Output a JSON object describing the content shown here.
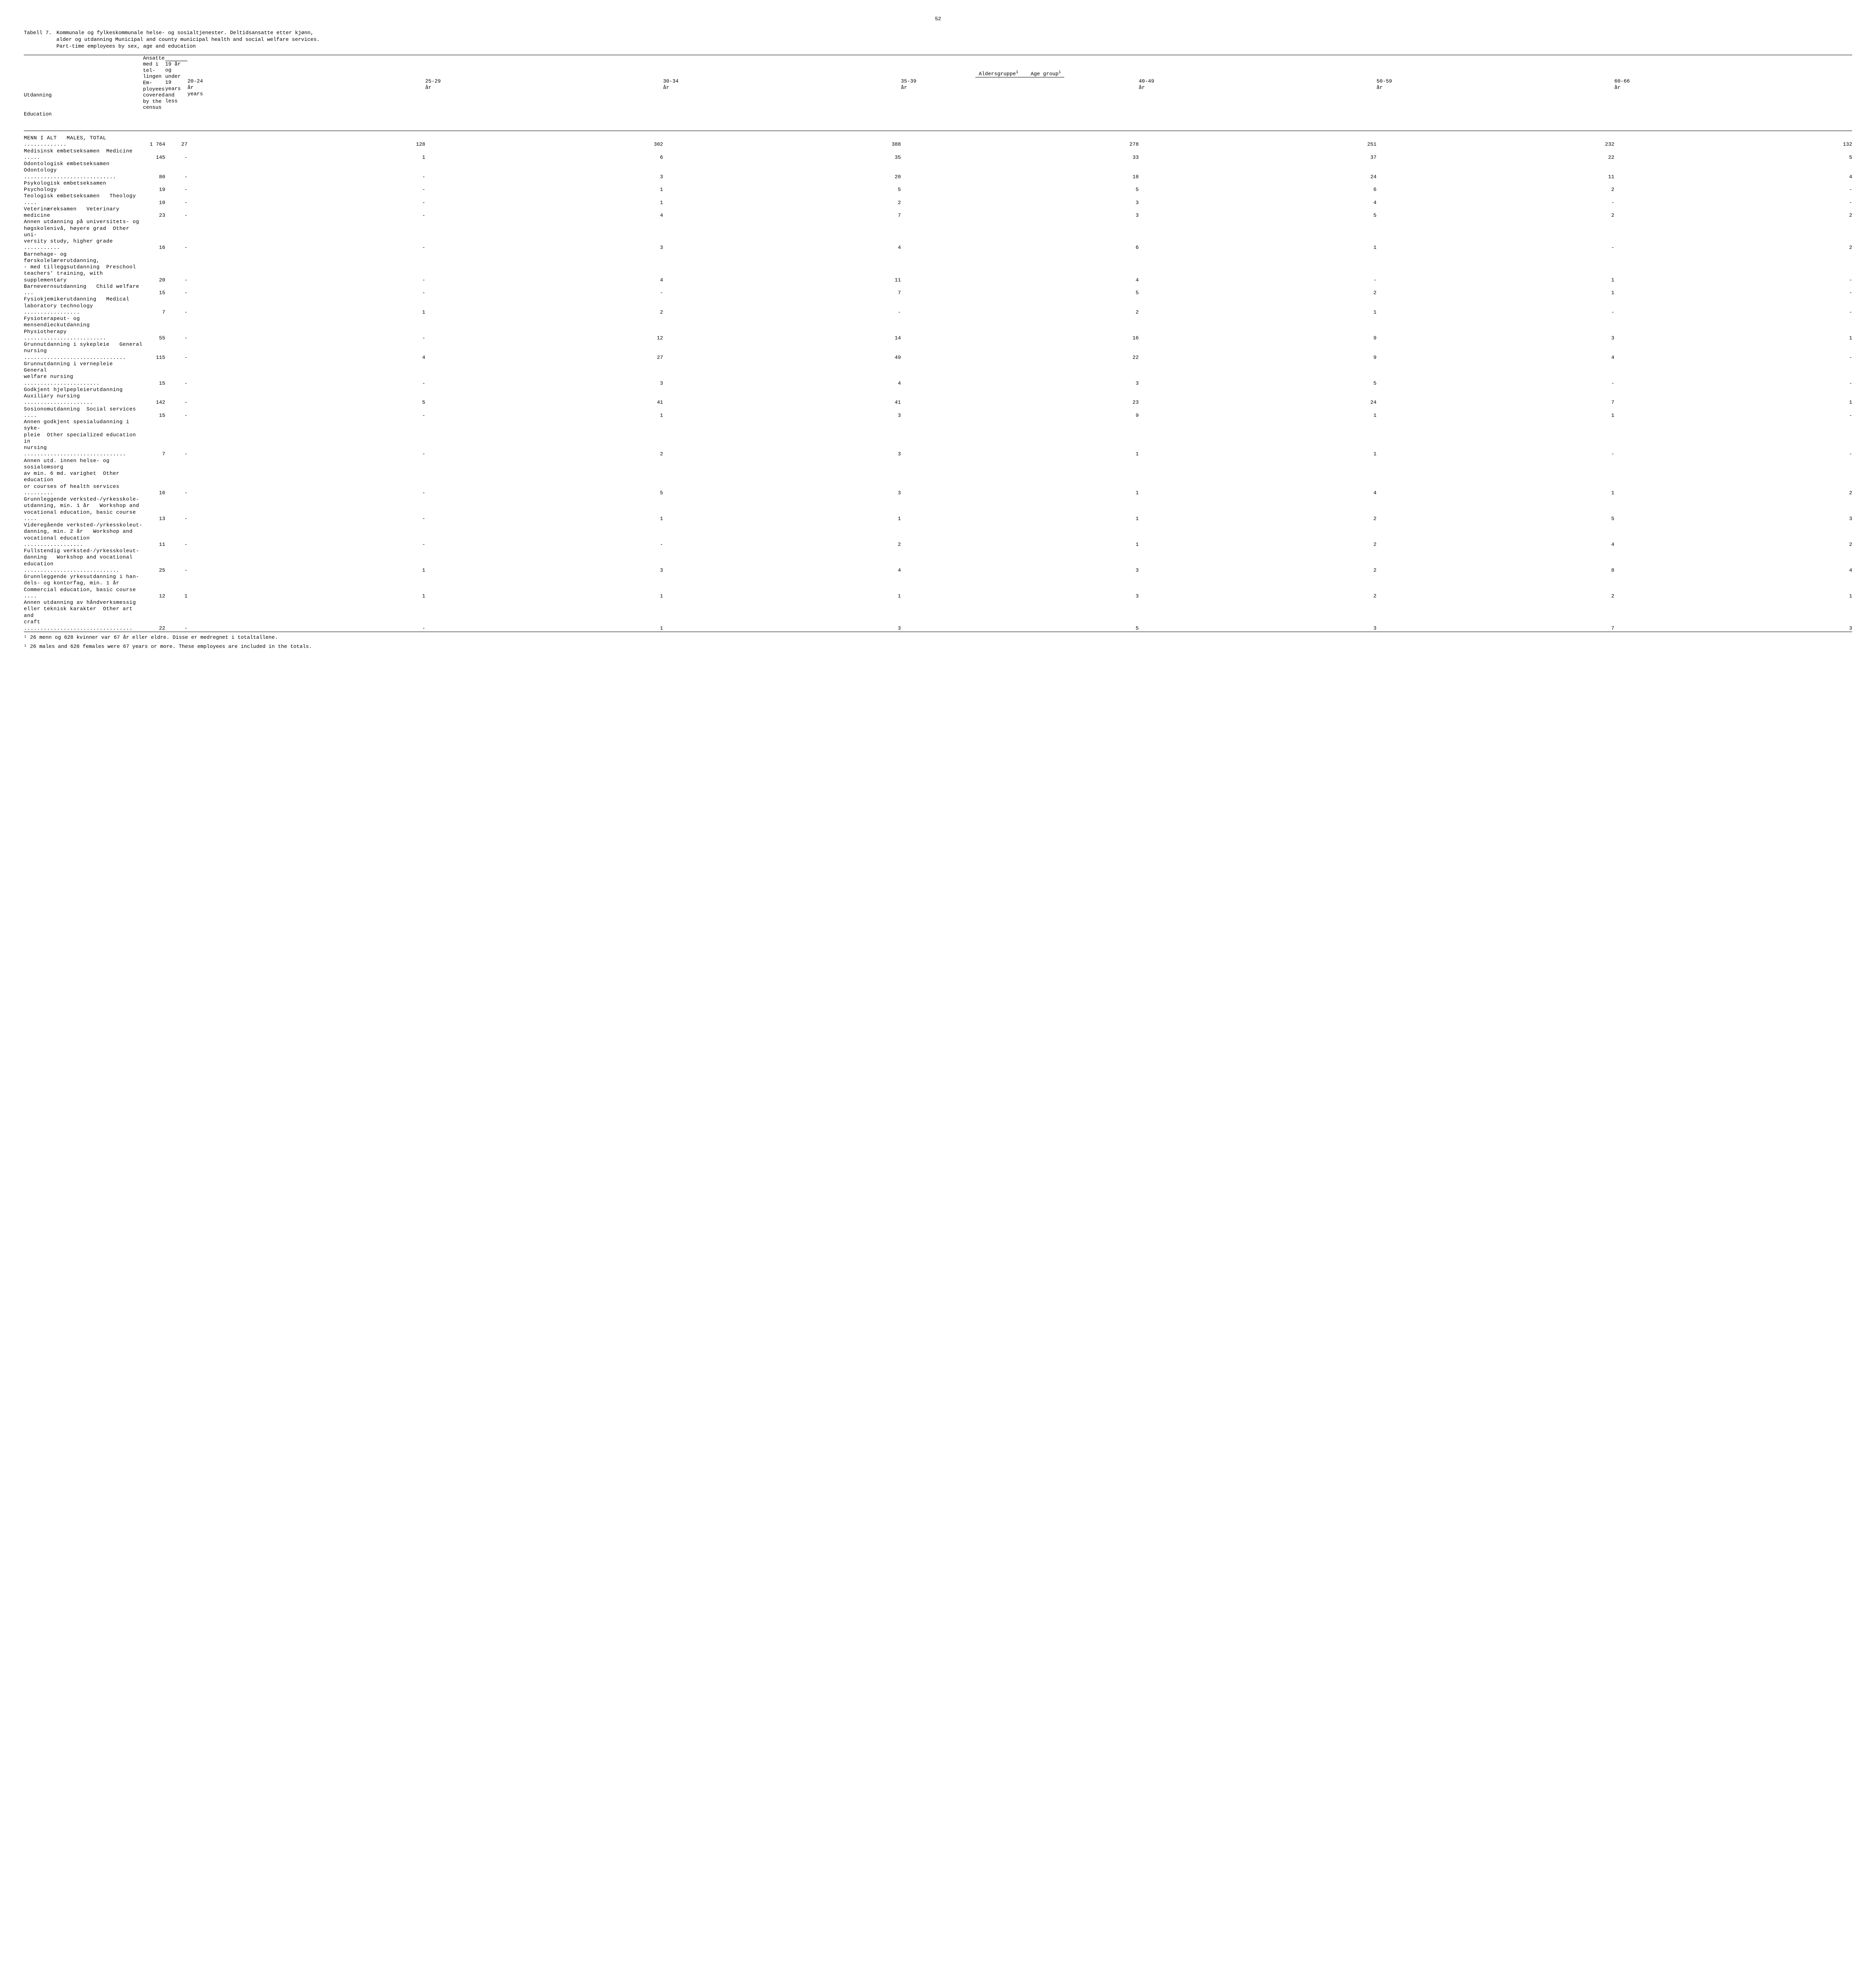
{
  "page_number": "52",
  "table_label": "Tabell 7.",
  "title_line1": "Kommunale og fylkeskommunale helse- og sosialtjenester.  Deltidsansatte etter kjønn,",
  "title_line2": "alder og utdanning   Municipal and county municipal health and social welfare services.",
  "title_line3": "Part-time employees by sex, age and education",
  "stub_head_no": "Utdanning",
  "stub_head_en": "Education",
  "col_total_no": "Ansatte med i tel-lingen",
  "col_total_en": "Em-ployees covered by the census",
  "span_no": "Aldersgruppe",
  "span_en": "Age group",
  "sup": "1",
  "age_cols": [
    {
      "no": "19 år og under",
      "en": "19 years and less"
    },
    {
      "no": "20-24 år",
      "en": "years"
    },
    {
      "no": "25-29 år",
      "en": ""
    },
    {
      "no": "30-34 år",
      "en": ""
    },
    {
      "no": "35-39 år",
      "en": ""
    },
    {
      "no": "40-49 år",
      "en": ""
    },
    {
      "no": "50-59 år",
      "en": ""
    },
    {
      "no": "60-66 år",
      "en": ""
    }
  ],
  "rows": [
    {
      "label": "MENN I ALT   MALES, TOTAL .............",
      "vals": [
        "1 764",
        "27",
        "128",
        "302",
        "388",
        "278",
        "251",
        "232",
        "132"
      ],
      "bold": true
    },
    {
      "label": "",
      "vals": [
        "",
        "",
        "",
        "",
        "",
        "",
        "",
        "",
        ""
      ]
    },
    {
      "label": "Medisinsk embetseksamen  Medicine .....",
      "vals": [
        "145",
        "-",
        "1",
        "6",
        "35",
        "33",
        "37",
        "22",
        "5"
      ]
    },
    {
      "label": "Odontologisk embetseksamen",
      "vals": [
        "",
        "",
        "",
        "",
        "",
        "",
        "",
        "",
        ""
      ]
    },
    {
      "label": "Odontology ............................",
      "vals": [
        "80",
        "-",
        "-",
        "3",
        "20",
        "18",
        "24",
        "11",
        "4"
      ]
    },
    {
      "label": "Psykologisk embetseksamen   Psychology",
      "vals": [
        "19",
        "-",
        "-",
        "1",
        "5",
        "5",
        "6",
        "2",
        "-"
      ]
    },
    {
      "label": "Teologisk embetseksamen   Theology ....",
      "vals": [
        "10",
        "-",
        "-",
        "1",
        "2",
        "3",
        "4",
        "-",
        "-"
      ]
    },
    {
      "label": "Veterinæreksamen   Veterinary medicine",
      "vals": [
        "23",
        "-",
        "-",
        "4",
        "7",
        "3",
        "5",
        "2",
        "2"
      ]
    },
    {
      "label": "Annen utdanning på universitets- og",
      "vals": [
        "",
        "",
        "",
        "",
        "",
        "",
        "",
        "",
        ""
      ]
    },
    {
      "label": "høgskolenivå, høyere grad  Other uni-",
      "vals": [
        "",
        "",
        "",
        "",
        "",
        "",
        "",
        "",
        ""
      ]
    },
    {
      "label": "versity study, higher grade ...........",
      "vals": [
        "16",
        "-",
        "-",
        "3",
        "4",
        "6",
        "1",
        "-",
        "2"
      ]
    },
    {
      "label": "Barnehage- og førskolelærerutdanning,",
      "vals": [
        "",
        "",
        "",
        "",
        "",
        "",
        "",
        "",
        ""
      ]
    },
    {
      "label": "- med tilleggsutdanning  Preschool",
      "vals": [
        "",
        "",
        "",
        "",
        "",
        "",
        "",
        "",
        ""
      ]
    },
    {
      "label": "teachers' training, with supplementary",
      "vals": [
        "20",
        "-",
        "-",
        "4",
        "11",
        "4",
        "-",
        "1",
        "-"
      ]
    },
    {
      "label": "Barnevernsutdanning   Child welfare ...",
      "vals": [
        "15",
        "-",
        "-",
        "-",
        "7",
        "5",
        "2",
        "1",
        "-"
      ]
    },
    {
      "label": "Fysiokjemikerutdanning   Medical",
      "vals": [
        "",
        "",
        "",
        "",
        "",
        "",
        "",
        "",
        ""
      ]
    },
    {
      "label": "laboratory technology .................",
      "vals": [
        "7",
        "-",
        "1",
        "2",
        "-",
        "2",
        "1",
        "-",
        "-"
      ]
    },
    {
      "label": "Fysioterapeut- og mensendieckutdanning",
      "vals": [
        "",
        "",
        "",
        "",
        "",
        "",
        "",
        "",
        ""
      ]
    },
    {
      "label": "Physiotherapy .........................",
      "vals": [
        "55",
        "-",
        "-",
        "12",
        "14",
        "16",
        "9",
        "3",
        "1"
      ]
    },
    {
      "label": "Grunnutdanning i sykepleie   General",
      "vals": [
        "",
        "",
        "",
        "",
        "",
        "",
        "",
        "",
        ""
      ]
    },
    {
      "label": "nursing ...............................",
      "vals": [
        "115",
        "-",
        "4",
        "27",
        "49",
        "22",
        "9",
        "4",
        "-"
      ]
    },
    {
      "label": "Grunnutdanning i vernepleie   General",
      "vals": [
        "",
        "",
        "",
        "",
        "",
        "",
        "",
        "",
        ""
      ]
    },
    {
      "label": "welfare nursing .......................",
      "vals": [
        "15",
        "-",
        "-",
        "3",
        "4",
        "3",
        "5",
        "-",
        "-"
      ]
    },
    {
      "label": "Godkjent hjelpepleierutdanning",
      "vals": [
        "",
        "",
        "",
        "",
        "",
        "",
        "",
        "",
        ""
      ]
    },
    {
      "label": "Auxiliary nursing .....................",
      "vals": [
        "142",
        "-",
        "5",
        "41",
        "41",
        "23",
        "24",
        "7",
        "1"
      ]
    },
    {
      "label": "Sosionomutdanning  Social services ....",
      "vals": [
        "15",
        "-",
        "-",
        "1",
        "3",
        "9",
        "1",
        "1",
        "-"
      ]
    },
    {
      "label": "Annen godkjent spesialudanning i syke-",
      "vals": [
        "",
        "",
        "",
        "",
        "",
        "",
        "",
        "",
        ""
      ]
    },
    {
      "label": "pleie  Other specialized education in",
      "vals": [
        "",
        "",
        "",
        "",
        "",
        "",
        "",
        "",
        ""
      ]
    },
    {
      "label": "nursing ...............................",
      "vals": [
        "7",
        "-",
        "-",
        "2",
        "3",
        "1",
        "1",
        "-",
        "-"
      ]
    },
    {
      "label": "Annen utd. innen helse- og sosialomsorg",
      "vals": [
        "",
        "",
        "",
        "",
        "",
        "",
        "",
        "",
        ""
      ]
    },
    {
      "label": "av min. 6 md. varighet  Other education",
      "vals": [
        "",
        "",
        "",
        "",
        "",
        "",
        "",
        "",
        ""
      ]
    },
    {
      "label": "or courses of health services .........",
      "vals": [
        "16",
        "-",
        "-",
        "5",
        "3",
        "1",
        "4",
        "1",
        "2"
      ]
    },
    {
      "label": "Grunnleggende verksted-/yrkesskole-",
      "vals": [
        "",
        "",
        "",
        "",
        "",
        "",
        "",
        "",
        ""
      ]
    },
    {
      "label": "utdanning, min. 1 år   Workshop and",
      "vals": [
        "",
        "",
        "",
        "",
        "",
        "",
        "",
        "",
        ""
      ]
    },
    {
      "label": "vocational education, basic course ....",
      "vals": [
        "13",
        "-",
        "-",
        "1",
        "1",
        "1",
        "2",
        "5",
        "3"
      ]
    },
    {
      "label": "Videregående verksted-/yrkesskoleut-",
      "vals": [
        "",
        "",
        "",
        "",
        "",
        "",
        "",
        "",
        ""
      ]
    },
    {
      "label": "danning, min. 2 år   Workshop and",
      "vals": [
        "",
        "",
        "",
        "",
        "",
        "",
        "",
        "",
        ""
      ]
    },
    {
      "label": "vocational education ..................",
      "vals": [
        "11",
        "-",
        "-",
        "-",
        "2",
        "1",
        "2",
        "4",
        "2"
      ]
    },
    {
      "label": "Fullstendig verksted-/yrkesskoleut-",
      "vals": [
        "",
        "",
        "",
        "",
        "",
        "",
        "",
        "",
        ""
      ]
    },
    {
      "label": "danning   Workshop and vocational",
      "vals": [
        "",
        "",
        "",
        "",
        "",
        "",
        "",
        "",
        ""
      ]
    },
    {
      "label": "education .............................",
      "vals": [
        "25",
        "-",
        "1",
        "3",
        "4",
        "3",
        "2",
        "8",
        "4"
      ]
    },
    {
      "label": "Grunnleggende yrkesutdanning i han-",
      "vals": [
        "",
        "",
        "",
        "",
        "",
        "",
        "",
        "",
        ""
      ]
    },
    {
      "label": "dels- og kontorfag, min. 1 år",
      "vals": [
        "",
        "",
        "",
        "",
        "",
        "",
        "",
        "",
        ""
      ]
    },
    {
      "label": "Commercial education, basic course ....",
      "vals": [
        "12",
        "1",
        "1",
        "1",
        "1",
        "3",
        "2",
        "2",
        "1"
      ]
    },
    {
      "label": "Annen utdanning av håndverksmessig",
      "vals": [
        "",
        "",
        "",
        "",
        "",
        "",
        "",
        "",
        ""
      ]
    },
    {
      "label": "eller teknisk karakter  Other art and",
      "vals": [
        "",
        "",
        "",
        "",
        "",
        "",
        "",
        "",
        ""
      ]
    },
    {
      "label": "craft .................................",
      "vals": [
        "22",
        "-",
        "-",
        "1",
        "3",
        "5",
        "3",
        "7",
        "3"
      ],
      "last": true
    }
  ],
  "footnote_no": "¹ 26 menn og 628 kvinner var 67 år eller eldre.  Disse er medregnet i totaltallene.",
  "footnote_en": "¹ 26 males and 628 females were 67 years or more.  These employees are included in the totals.",
  "colors": {
    "text": "#000000",
    "bg": "#ffffff"
  }
}
